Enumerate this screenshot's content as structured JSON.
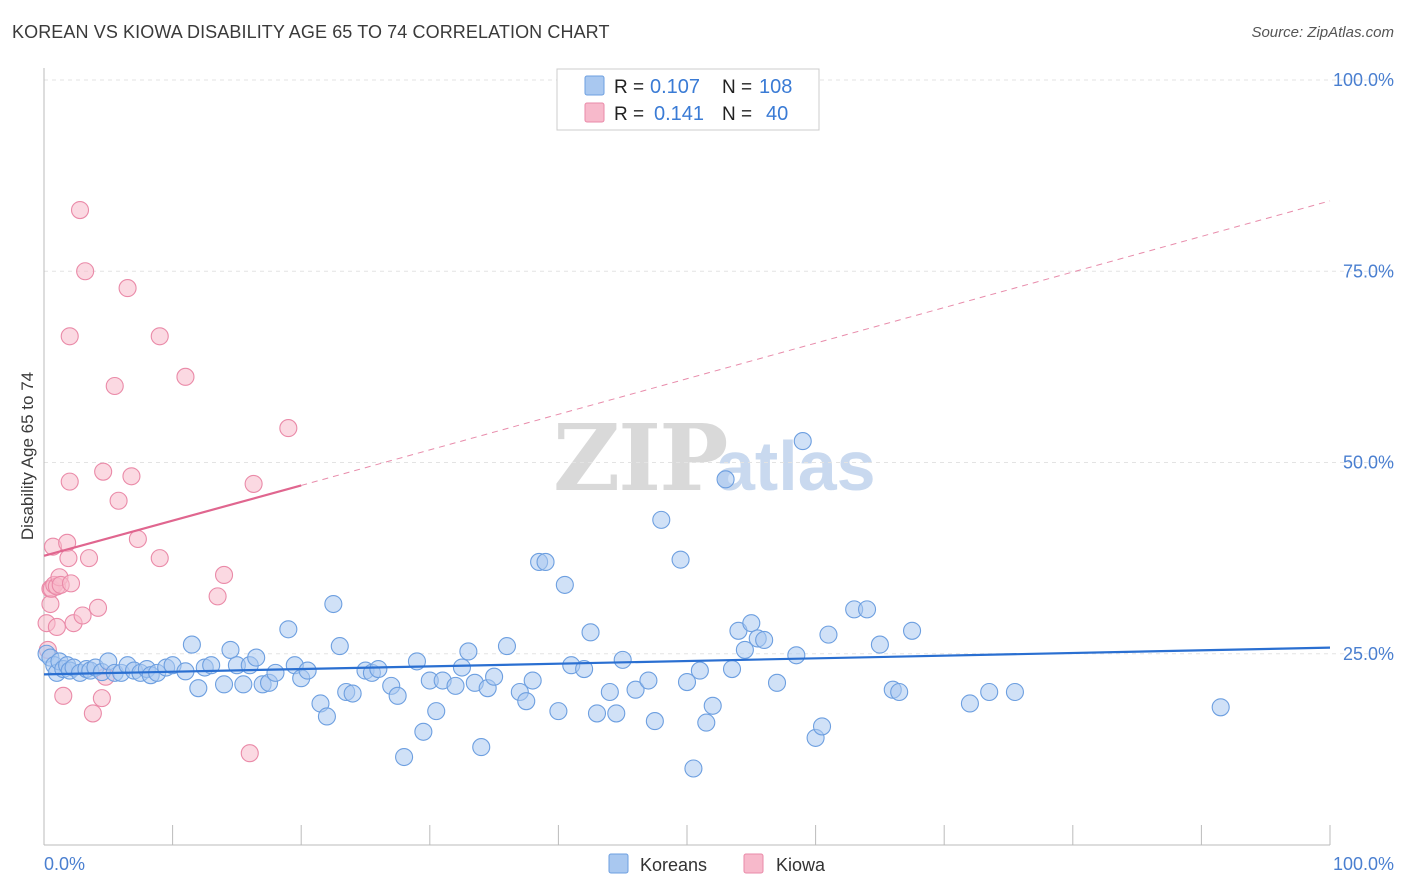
{
  "header": {
    "title": "KOREAN VS KIOWA DISABILITY AGE 65 TO 74 CORRELATION CHART",
    "source": "Source: ZipAtlas.com"
  },
  "watermark": {
    "zip": "ZIP",
    "atlas": "atlas"
  },
  "legend": {
    "rows": [
      {
        "r_label": "R =",
        "r_value": "0.107",
        "n_label": "N =",
        "n_value": "108",
        "color": "#a9c8f0"
      },
      {
        "r_label": "R =",
        "r_value": "0.141",
        "n_label": "N =",
        "n_value": "40",
        "color": "#f7b9cb"
      }
    ]
  },
  "bottom_legend": {
    "koreans": "Koreans",
    "kiowa": "Kiowa"
  },
  "colors": {
    "korean_fill": "#a9c8f0",
    "korean_stroke": "#6d9fe0",
    "korean_line": "#2a6fd1",
    "kiowa_fill": "#f7b9cb",
    "kiowa_stroke": "#ea8aa8",
    "kiowa_line": "#e0668f",
    "tick_label": "#4a7fd0"
  },
  "chart_data": {
    "type": "scatter",
    "title": "KOREAN VS KIOWA DISABILITY AGE 65 TO 74 CORRELATION CHART",
    "xlabel": "",
    "ylabel": "Disability Age 65 to 74",
    "xlim": [
      0,
      100
    ],
    "ylim": [
      0,
      100
    ],
    "x_tick_labels": [
      "0.0%",
      "100.0%"
    ],
    "y_ticks": [
      25,
      50,
      75,
      100
    ],
    "y_tick_labels": [
      "25.0%",
      "50.0%",
      "75.0%",
      "100.0%"
    ],
    "series": [
      {
        "name": "Koreans",
        "R": 0.107,
        "N": 108,
        "trend": {
          "x": [
            0,
            100
          ],
          "y": [
            22.3,
            25.8
          ]
        },
        "points": [
          [
            0.2,
            25.0
          ],
          [
            0.5,
            24.5
          ],
          [
            0.8,
            23.5
          ],
          [
            1.0,
            22.5
          ],
          [
            1.2,
            24.0
          ],
          [
            1.5,
            23.0
          ],
          [
            1.8,
            23.5
          ],
          [
            2.0,
            22.8
          ],
          [
            2.3,
            23.2
          ],
          [
            2.8,
            22.5
          ],
          [
            3.3,
            23.0
          ],
          [
            3.6,
            22.8
          ],
          [
            4.0,
            23.2
          ],
          [
            4.5,
            22.6
          ],
          [
            5.0,
            24.0
          ],
          [
            5.5,
            22.5
          ],
          [
            6.0,
            22.5
          ],
          [
            6.5,
            23.5
          ],
          [
            7.0,
            22.8
          ],
          [
            7.5,
            22.5
          ],
          [
            8.0,
            23.0
          ],
          [
            8.3,
            22.2
          ],
          [
            8.8,
            22.5
          ],
          [
            9.5,
            23.2
          ],
          [
            10.0,
            23.5
          ],
          [
            11.0,
            22.7
          ],
          [
            11.5,
            26.2
          ],
          [
            12.0,
            20.5
          ],
          [
            12.5,
            23.2
          ],
          [
            13.0,
            23.5
          ],
          [
            14.0,
            21.0
          ],
          [
            14.5,
            25.5
          ],
          [
            15.0,
            23.5
          ],
          [
            15.5,
            21.0
          ],
          [
            16.0,
            23.5
          ],
          [
            16.5,
            24.5
          ],
          [
            17.0,
            21.0
          ],
          [
            17.5,
            21.2
          ],
          [
            18.0,
            22.5
          ],
          [
            19.0,
            28.2
          ],
          [
            19.5,
            23.5
          ],
          [
            20.0,
            21.8
          ],
          [
            20.5,
            22.8
          ],
          [
            21.5,
            18.5
          ],
          [
            22.0,
            16.8
          ],
          [
            22.5,
            31.5
          ],
          [
            23.0,
            26.0
          ],
          [
            23.5,
            20.0
          ],
          [
            24.0,
            19.8
          ],
          [
            25.0,
            22.8
          ],
          [
            25.5,
            22.5
          ],
          [
            26.0,
            23.0
          ],
          [
            27.0,
            20.8
          ],
          [
            27.5,
            19.5
          ],
          [
            28.0,
            11.5
          ],
          [
            29.0,
            24.0
          ],
          [
            29.5,
            14.8
          ],
          [
            30.0,
            21.5
          ],
          [
            30.5,
            17.5
          ],
          [
            31.0,
            21.5
          ],
          [
            32.0,
            20.8
          ],
          [
            32.5,
            23.2
          ],
          [
            33.0,
            25.3
          ],
          [
            33.5,
            21.2
          ],
          [
            34.0,
            12.8
          ],
          [
            34.5,
            20.5
          ],
          [
            35.0,
            22.0
          ],
          [
            36.0,
            26.0
          ],
          [
            37.0,
            20.0
          ],
          [
            37.5,
            18.8
          ],
          [
            38.0,
            21.5
          ],
          [
            38.5,
            37.0
          ],
          [
            39.0,
            37.0
          ],
          [
            40.0,
            17.5
          ],
          [
            40.5,
            34.0
          ],
          [
            41.0,
            23.5
          ],
          [
            42.0,
            23.0
          ],
          [
            42.5,
            27.8
          ],
          [
            43.0,
            17.2
          ],
          [
            44.0,
            20.0
          ],
          [
            44.5,
            17.2
          ],
          [
            45.0,
            24.2
          ],
          [
            46.0,
            20.3
          ],
          [
            47.0,
            21.5
          ],
          [
            47.5,
            16.2
          ],
          [
            48.0,
            42.5
          ],
          [
            49.5,
            37.3
          ],
          [
            50.0,
            21.3
          ],
          [
            50.5,
            10.0
          ],
          [
            51.0,
            22.8
          ],
          [
            51.5,
            16.0
          ],
          [
            52.0,
            18.2
          ],
          [
            53.0,
            47.8
          ],
          [
            53.5,
            23.0
          ],
          [
            54.0,
            28.0
          ],
          [
            54.5,
            25.5
          ],
          [
            55.0,
            29.0
          ],
          [
            55.5,
            27.0
          ],
          [
            56.0,
            26.8
          ],
          [
            57.0,
            21.2
          ],
          [
            58.5,
            24.8
          ],
          [
            59.0,
            52.8
          ],
          [
            60.0,
            14.0
          ],
          [
            60.5,
            15.5
          ],
          [
            61.0,
            27.5
          ],
          [
            63.0,
            30.8
          ],
          [
            64.0,
            30.8
          ],
          [
            65.0,
            26.2
          ],
          [
            66.0,
            20.3
          ],
          [
            66.5,
            20.0
          ],
          [
            67.5,
            28.0
          ],
          [
            72.0,
            18.5
          ],
          [
            73.5,
            20.0
          ],
          [
            75.5,
            20.0
          ],
          [
            91.5,
            18.0
          ]
        ]
      },
      {
        "name": "Kiowa",
        "R": 0.141,
        "N": 40,
        "trend": {
          "x": [
            0,
            20
          ],
          "y": [
            37.8,
            47.0
          ]
        },
        "trend_extended": {
          "x": [
            20,
            100
          ],
          "y": [
            47.0,
            84.2
          ]
        },
        "points": [
          [
            0.2,
            29.0
          ],
          [
            0.3,
            25.5
          ],
          [
            0.5,
            33.5
          ],
          [
            0.5,
            31.5
          ],
          [
            0.6,
            33.5
          ],
          [
            0.7,
            39.0
          ],
          [
            0.8,
            34.0
          ],
          [
            1.0,
            28.5
          ],
          [
            1.0,
            33.8
          ],
          [
            1.2,
            35.0
          ],
          [
            1.3,
            34.0
          ],
          [
            1.5,
            19.5
          ],
          [
            1.8,
            39.5
          ],
          [
            1.9,
            37.5
          ],
          [
            2.0,
            47.5
          ],
          [
            2.0,
            66.5
          ],
          [
            2.1,
            34.2
          ],
          [
            2.3,
            29.0
          ],
          [
            2.8,
            83.0
          ],
          [
            3.0,
            30.0
          ],
          [
            3.2,
            75.0
          ],
          [
            3.5,
            37.5
          ],
          [
            3.8,
            17.2
          ],
          [
            4.2,
            31.0
          ],
          [
            4.5,
            19.2
          ],
          [
            4.6,
            48.8
          ],
          [
            4.8,
            22.0
          ],
          [
            5.5,
            60.0
          ],
          [
            5.8,
            45.0
          ],
          [
            6.5,
            72.8
          ],
          [
            6.8,
            48.2
          ],
          [
            7.3,
            40.0
          ],
          [
            9.0,
            37.5
          ],
          [
            9.0,
            66.5
          ],
          [
            11.0,
            61.2
          ],
          [
            13.5,
            32.5
          ],
          [
            14.0,
            35.3
          ],
          [
            16.0,
            12.0
          ],
          [
            16.3,
            47.2
          ],
          [
            19.0,
            54.5
          ]
        ]
      }
    ]
  }
}
